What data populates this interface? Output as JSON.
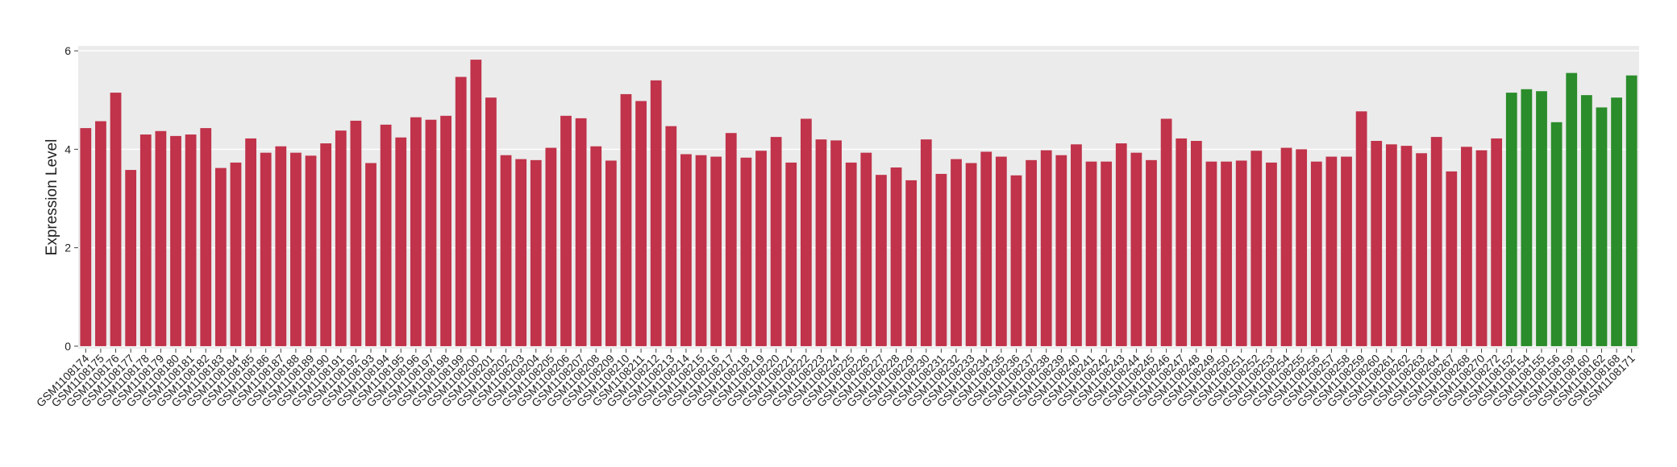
{
  "chart_data": {
    "type": "bar",
    "y_label": "Expression Level",
    "categories": [
      "GSM1108174",
      "GSM1108175",
      "GSM1108176",
      "GSM1108177",
      "GSM1108178",
      "GSM1108179",
      "GSM1108180",
      "GSM1108181",
      "GSM1108182",
      "GSM1108183",
      "GSM1108184",
      "GSM1108185",
      "GSM1108186",
      "GSM1108187",
      "GSM1108188",
      "GSM1108189",
      "GSM1108190",
      "GSM1108191",
      "GSM1108192",
      "GSM1108193",
      "GSM1108194",
      "GSM1108195",
      "GSM1108196",
      "GSM1108197",
      "GSM1108198",
      "GSM1108199",
      "GSM1108200",
      "GSM1108201",
      "GSM1108202",
      "GSM1108203",
      "GSM1108204",
      "GSM1108205",
      "GSM1108206",
      "GSM1108207",
      "GSM1108208",
      "GSM1108209",
      "GSM1108210",
      "GSM1108211",
      "GSM1108212",
      "GSM1108213",
      "GSM1108214",
      "GSM1108215",
      "GSM1108216",
      "GSM1108217",
      "GSM1108218",
      "GSM1108219",
      "GSM1108220",
      "GSM1108221",
      "GSM1108222",
      "GSM1108223",
      "GSM1108224",
      "GSM1108225",
      "GSM1108226",
      "GSM1108227",
      "GSM1108228",
      "GSM1108229",
      "GSM1108230",
      "GSM1108231",
      "GSM1108232",
      "GSM1108233",
      "GSM1108234",
      "GSM1108235",
      "GSM1108236",
      "GSM1108237",
      "GSM1108238",
      "GSM1108239",
      "GSM1108240",
      "GSM1108241",
      "GSM1108242",
      "GSM1108243",
      "GSM1108244",
      "GSM1108245",
      "GSM1108246",
      "GSM1108247",
      "GSM1108248",
      "GSM1108249",
      "GSM1108250",
      "GSM1108251",
      "GSM1108252",
      "GSM1108253",
      "GSM1108254",
      "GSM1108255",
      "GSM1108256",
      "GSM1108257",
      "GSM1108258",
      "GSM1108259",
      "GSM1108260",
      "GSM1108261",
      "GSM1108262",
      "GSM1108263",
      "GSM1108264",
      "GSM1108267",
      "GSM1108268",
      "GSM1108270",
      "GSM1108272",
      "GSM1108152",
      "GSM1108154",
      "GSM1108155",
      "GSM1108156",
      "GSM1108159",
      "GSM1108160",
      "GSM1108162",
      "GSM1108168",
      "GSM1108171"
    ],
    "values": [
      4.43,
      4.57,
      5.15,
      3.58,
      4.3,
      4.37,
      4.27,
      4.3,
      4.43,
      3.62,
      3.73,
      4.22,
      3.93,
      4.06,
      3.93,
      3.87,
      4.12,
      4.38,
      4.58,
      3.72,
      4.5,
      4.24,
      4.65,
      4.6,
      4.68,
      5.47,
      5.82,
      5.05,
      3.88,
      3.8,
      3.78,
      4.03,
      4.68,
      4.63,
      4.06,
      3.77,
      5.12,
      4.98,
      5.4,
      4.47,
      3.9,
      3.88,
      3.85,
      4.33,
      3.83,
      3.97,
      4.25,
      3.73,
      4.62,
      4.2,
      4.18,
      3.73,
      3.93,
      3.48,
      3.63,
      3.37,
      4.2,
      3.5,
      3.8,
      3.72,
      3.95,
      3.85,
      3.47,
      3.78,
      3.98,
      3.88,
      4.1,
      3.75,
      3.75,
      4.12,
      3.93,
      3.78,
      4.62,
      4.22,
      4.17,
      3.75,
      3.75,
      3.77,
      3.97,
      3.73,
      4.03,
      4.0,
      3.75,
      3.85,
      3.85,
      4.77,
      4.17,
      4.1,
      4.07,
      3.92,
      4.25,
      3.55,
      4.05,
      3.98,
      4.22,
      5.15,
      5.22,
      5.18,
      4.55,
      5.55,
      5.1,
      4.85,
      5.05,
      5.5
    ],
    "colors": [
      "#c0334a",
      "#c0334a",
      "#c0334a",
      "#c0334a",
      "#c0334a",
      "#c0334a",
      "#c0334a",
      "#c0334a",
      "#c0334a",
      "#c0334a",
      "#c0334a",
      "#c0334a",
      "#c0334a",
      "#c0334a",
      "#c0334a",
      "#c0334a",
      "#c0334a",
      "#c0334a",
      "#c0334a",
      "#c0334a",
      "#c0334a",
      "#c0334a",
      "#c0334a",
      "#c0334a",
      "#c0334a",
      "#c0334a",
      "#c0334a",
      "#c0334a",
      "#c0334a",
      "#c0334a",
      "#c0334a",
      "#c0334a",
      "#c0334a",
      "#c0334a",
      "#c0334a",
      "#c0334a",
      "#c0334a",
      "#c0334a",
      "#c0334a",
      "#c0334a",
      "#c0334a",
      "#c0334a",
      "#c0334a",
      "#c0334a",
      "#c0334a",
      "#c0334a",
      "#c0334a",
      "#c0334a",
      "#c0334a",
      "#c0334a",
      "#c0334a",
      "#c0334a",
      "#c0334a",
      "#c0334a",
      "#c0334a",
      "#c0334a",
      "#c0334a",
      "#c0334a",
      "#c0334a",
      "#c0334a",
      "#c0334a",
      "#c0334a",
      "#c0334a",
      "#c0334a",
      "#c0334a",
      "#c0334a",
      "#c0334a",
      "#c0334a",
      "#c0334a",
      "#c0334a",
      "#c0334a",
      "#c0334a",
      "#c0334a",
      "#c0334a",
      "#c0334a",
      "#c0334a",
      "#c0334a",
      "#c0334a",
      "#c0334a",
      "#c0334a",
      "#c0334a",
      "#c0334a",
      "#c0334a",
      "#c0334a",
      "#c0334a",
      "#c0334a",
      "#c0334a",
      "#c0334a",
      "#c0334a",
      "#c0334a",
      "#c0334a",
      "#c0334a",
      "#c0334a",
      "#c0334a",
      "#c0334a",
      "#2a8c2a",
      "#2a8c2a",
      "#2a8c2a",
      "#2a8c2a",
      "#2a8c2a",
      "#2a8c2a",
      "#2a8c2a",
      "#2a8c2a",
      "#2a8c2a"
    ],
    "ylim": [
      -0.05,
      6.1
    ],
    "yticks": [
      0,
      2,
      4,
      6
    ],
    "grid": true
  }
}
